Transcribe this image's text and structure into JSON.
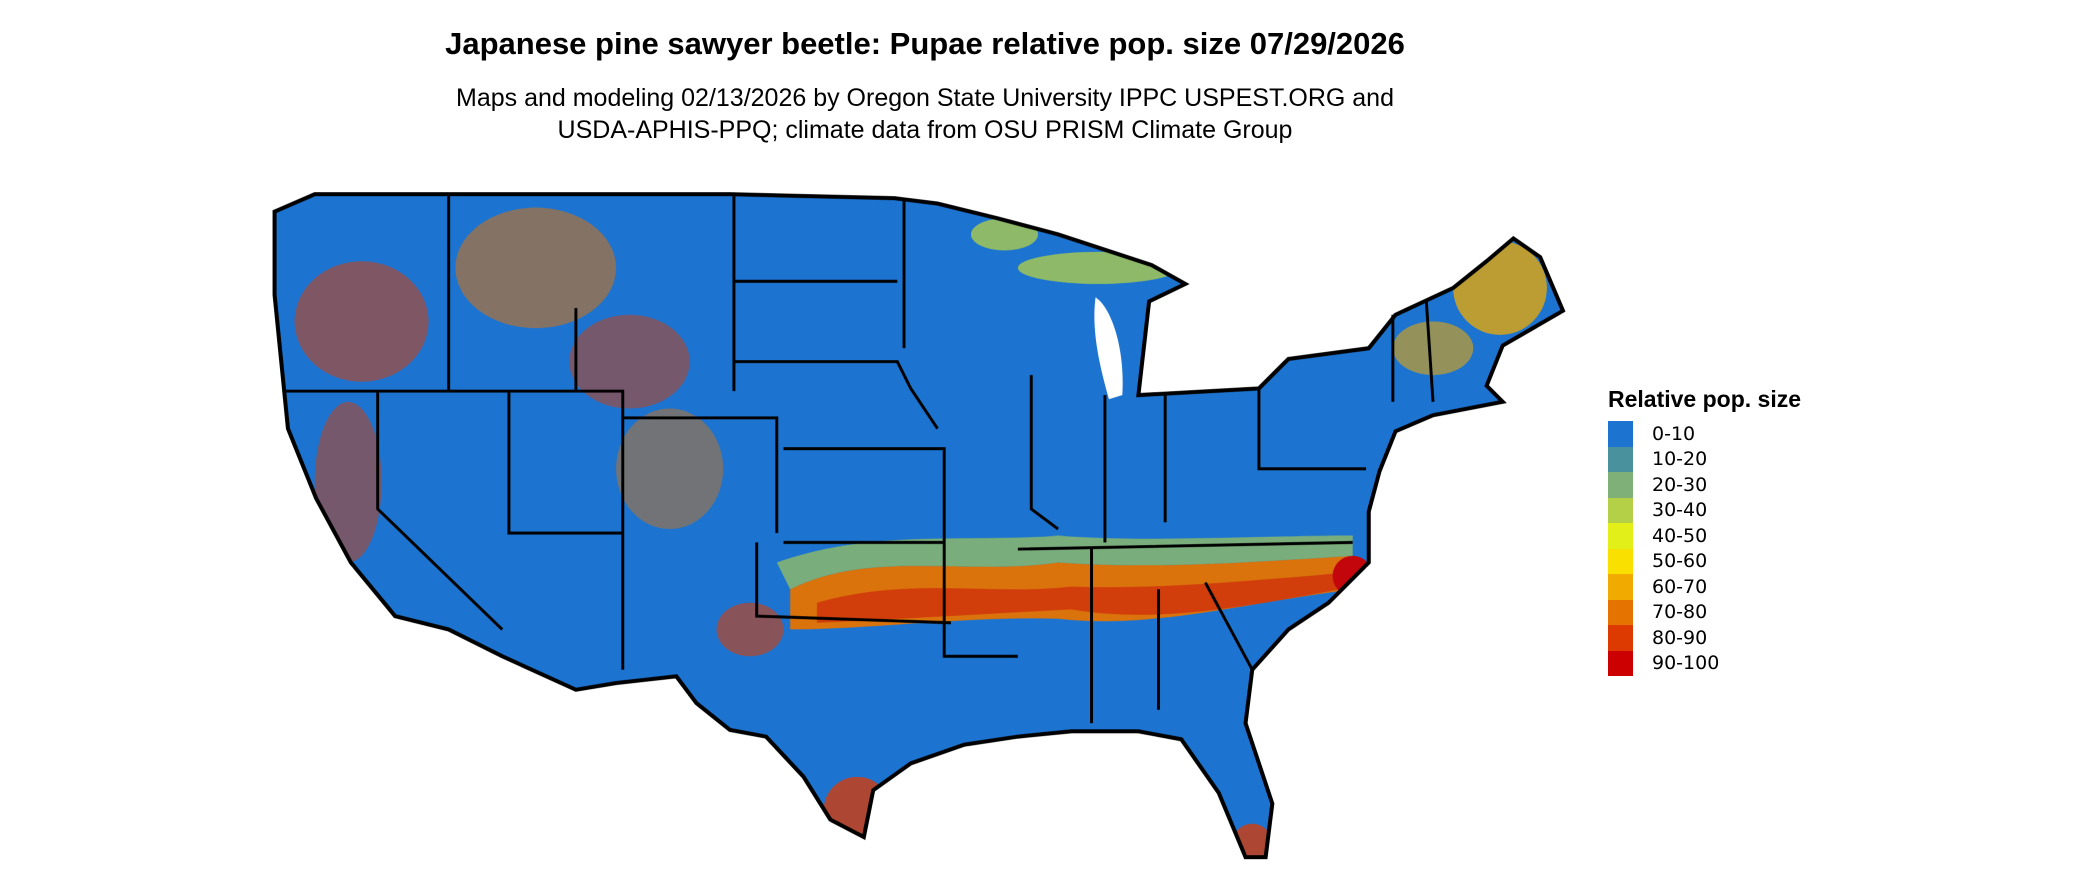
{
  "title": "Japanese pine sawyer beetle: Pupae relative pop. size 07/29/2026",
  "subtitle_lines": [
    "Maps and modeling 02/13/2026 by Oregon State University IPPC USPEST.ORG and",
    "USDA-APHIS-PPQ; climate data from OSU PRISM Climate Group"
  ],
  "legend": {
    "title": "Relative pop. size",
    "items": [
      {
        "label": "0-10",
        "color": "#1c74d0"
      },
      {
        "label": "10-20",
        "color": "#4a919e"
      },
      {
        "label": "20-30",
        "color": "#7fb077"
      },
      {
        "label": "30-40",
        "color": "#b3d046"
      },
      {
        "label": "40-50",
        "color": "#e3ef18"
      },
      {
        "label": "50-60",
        "color": "#f9e000"
      },
      {
        "label": "60-70",
        "color": "#f0aa00"
      },
      {
        "label": "70-80",
        "color": "#e57300"
      },
      {
        "label": "80-90",
        "color": "#dc3a00"
      },
      {
        "label": "90-100",
        "color": "#cc0000"
      }
    ]
  }
}
